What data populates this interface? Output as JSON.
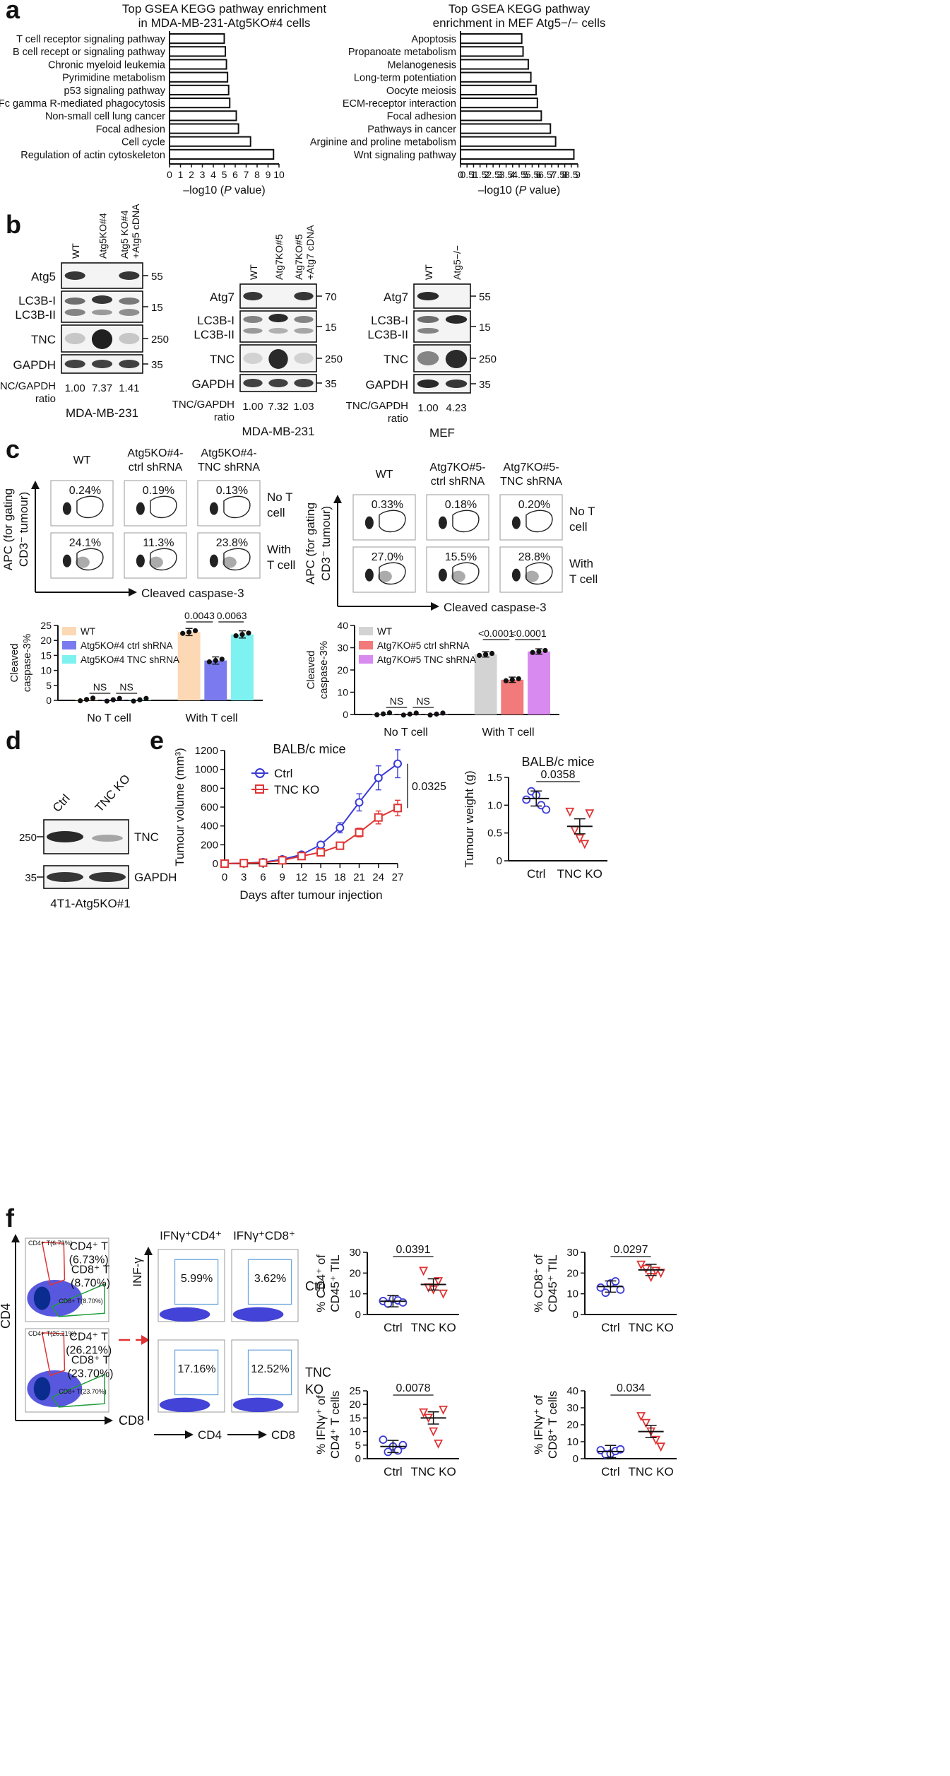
{
  "panels": {
    "a": "a",
    "b": "b",
    "c": "c",
    "d": "d",
    "e": "e",
    "f": "f"
  },
  "panel_a": {
    "left": {
      "title_1": "Top GSEA KEGG pathway enrichment",
      "title_2": "in MDA-MB-231-Atg5KO#4 cells",
      "xlabel": "–log10 (P value)",
      "ticks": [
        "0",
        "1",
        "2",
        "3",
        "4",
        "5",
        "6",
        "7",
        "8",
        "9",
        "10"
      ],
      "categories": [
        "T cell receptor signaling pathway",
        "B cell recept or signaling pathway",
        "Chronic myeloid leukemia",
        "Pyrimidine metabolism",
        "p53 signaling pathway",
        "Fc gamma R-mediated phagocytosis",
        "Non-small cell lung cancer",
        "Focal adhesion",
        "Cell cycle",
        "Regulation of actin cytoskeleton"
      ],
      "values": [
        5.0,
        5.1,
        5.2,
        5.3,
        5.4,
        5.5,
        6.1,
        6.3,
        7.4,
        9.5
      ]
    },
    "right": {
      "title_1": "Top GSEA KEGG pathway",
      "title_2": "enrichment in MEF Atg5−/− cells",
      "xlabel": "–log10 (P value)",
      "ticks": [
        "0",
        "0.5",
        "1",
        "1.5",
        "2",
        "2.5",
        "3",
        "3.5",
        "4",
        "4.5",
        "5",
        "5.5",
        "6",
        "6.5",
        "7",
        "7.5",
        "8",
        "8.5",
        "9"
      ],
      "categories": [
        "Apoptosis",
        "Propanoate metabolism",
        "Melanogenesis",
        "Long-term potentiation",
        "Oocyte meiosis",
        "ECM-receptor interaction",
        "Focal adhesion",
        "Pathways in cancer",
        "Arginine and proline metabolism",
        "Wnt signaling pathway"
      ],
      "values": [
        4.7,
        4.8,
        5.2,
        5.4,
        5.8,
        5.9,
        6.2,
        6.9,
        7.3,
        8.7
      ]
    }
  },
  "panel_b": {
    "blot1": {
      "lanes": [
        "WT",
        "Atg5KO#4",
        "Atg5 KO#4\n+Atg5 cDNA"
      ],
      "rows": [
        "Atg5",
        "LC3B-I\nLC3B-II",
        "TNC",
        "GAPDH"
      ],
      "kda": [
        "55",
        "15",
        "250",
        "35"
      ],
      "ratio_label": "TNC/GAPDH\nratio",
      "ratios": [
        "1.00",
        "7.37",
        "1.41"
      ],
      "cell": "MDA-MB-231"
    },
    "blot2": {
      "lanes": [
        "WT",
        "Atg7KO#5",
        "Atg7KO#5\n+Atg7 cDNA"
      ],
      "rows": [
        "Atg7",
        "LC3B-I\nLC3B-II",
        "TNC",
        "GAPDH"
      ],
      "kda": [
        "70",
        "15",
        "250",
        "35"
      ],
      "ratio_label": "TNC/GAPDH\nratio",
      "ratios": [
        "1.00",
        "7.32",
        "1.03"
      ],
      "cell": "MDA-MB-231"
    },
    "blot3": {
      "lanes": [
        "WT",
        "Atg5−/−"
      ],
      "rows": [
        "Atg7",
        "LC3B-I\nLC3B-II",
        "TNC",
        "GAPDH"
      ],
      "kda": [
        "55",
        "15",
        "250",
        "35"
      ],
      "ratio_label": "TNC/GAPDH\nratio",
      "ratios": [
        "1.00",
        "4.23"
      ],
      "cell": "MEF"
    }
  },
  "panel_c": {
    "left": {
      "cols": [
        "WT",
        "Atg5KO#4-\nctrl shRNA",
        "Atg5KO#4-\nTNC shRNA"
      ],
      "row_labels": [
        "No T\ncell",
        "With\nT cell"
      ],
      "pct_no": [
        "0.24%",
        "0.19%",
        "0.13%"
      ],
      "pct_with": [
        "24.1%",
        "11.3%",
        "23.8%"
      ],
      "y_axis_label": "APC (for gating\nCD3⁻ tumour)",
      "x_axis_label": "Cleaved caspase-3"
    },
    "right": {
      "cols": [
        "WT",
        "Atg7KO#5-\nctrl shRNA",
        "Atg7KO#5-\nTNC shRNA"
      ],
      "row_labels": [
        "No  T\ncell",
        "With\nT cell"
      ],
      "pct_no": [
        "0.33%",
        "0.18%",
        "0.20%"
      ],
      "pct_with": [
        "27.0%",
        "15.5%",
        "28.8%"
      ],
      "y_axis_label": "APC (for gating\nCD3⁻ tumour)",
      "x_axis_label": "Cleaved caspase-3"
    }
  },
  "chart_data": [
    {
      "type": "bar",
      "id": "c_left",
      "ylabel": "Cleaved\ncaspase-3%",
      "ylim": [
        0,
        25
      ],
      "yticks": [
        "0",
        "5",
        "10",
        "15",
        "20",
        "25"
      ],
      "categories": [
        "No T cell",
        "With T cell"
      ],
      "series": [
        {
          "name": "WT",
          "color": "#fcd9b4",
          "values": [
            0.3,
            22.8
          ]
        },
        {
          "name": "Atg5KO#4 ctrl shRNA",
          "color": "#7b7bef",
          "values": [
            0.2,
            13.3
          ]
        },
        {
          "name": "Atg5KO#4 TNC shRNA",
          "color": "#7ef1f1",
          "values": [
            0.2,
            22.0
          ]
        }
      ],
      "annotations": [
        "NS",
        "NS",
        "0.0043",
        "0.0063"
      ]
    },
    {
      "type": "bar",
      "id": "c_right",
      "ylabel": "Cleaved\ncaspase-3%",
      "ylim": [
        0,
        40
      ],
      "yticks": [
        "0",
        "10",
        "20",
        "30",
        "40"
      ],
      "categories": [
        "No T cell",
        "With T cell"
      ],
      "series": [
        {
          "name": "WT",
          "color": "#d3d3d3",
          "values": [
            0.3,
            27.0
          ]
        },
        {
          "name": "Atg7KO#5 ctrl shRNA",
          "color": "#f27a7a",
          "values": [
            0.2,
            15.6
          ]
        },
        {
          "name": "Atg7KO#5 TNC shRNA",
          "color": "#d98af0",
          "values": [
            0.2,
            28.3
          ]
        }
      ],
      "annotations": [
        "NS",
        "NS",
        "<0.0001",
        "<0.0001"
      ]
    },
    {
      "type": "line",
      "id": "e_volume",
      "title": "BALB/c mice",
      "xlabel": "Days after tumour injection",
      "ylabel": "Tumour volume (mm³)",
      "x": [
        0,
        3,
        6,
        9,
        12,
        15,
        18,
        21,
        24,
        27
      ],
      "ylim": [
        0,
        1200
      ],
      "yticks": [
        "0",
        "200",
        "400",
        "600",
        "800",
        "1000",
        "1200"
      ],
      "xticks": [
        "0",
        "3",
        "6",
        "9",
        "12",
        "15",
        "18",
        "21",
        "24",
        "27"
      ],
      "series": [
        {
          "name": "Ctrl",
          "color": "#3a3ad6",
          "values": [
            0,
            5,
            15,
            45,
            95,
            200,
            380,
            650,
            910,
            1060
          ]
        },
        {
          "name": "TNC KO",
          "color": "#e03434",
          "values": [
            0,
            5,
            10,
            35,
            80,
            120,
            190,
            330,
            490,
            590
          ]
        }
      ],
      "p_value": "0.0325"
    },
    {
      "type": "scatter",
      "id": "e_weight",
      "title": "BALB/c mice",
      "ylabel": "Tumour weight (g)",
      "categories": [
        "Ctrl",
        "TNC KO"
      ],
      "ylim": [
        0,
        1.5
      ],
      "yticks": [
        "0",
        "0.5",
        "1.0",
        "1.5"
      ],
      "series": [
        {
          "name": "Ctrl",
          "values": [
            1.1,
            1.25,
            1.18,
            1.0,
            0.92
          ],
          "mean": 1.12
        },
        {
          "name": "TNC KO",
          "values": [
            0.88,
            0.55,
            0.4,
            0.3,
            0.85
          ],
          "mean": 0.62
        }
      ],
      "p_value": "0.0358"
    },
    {
      "type": "scatter",
      "id": "f1",
      "ylabel": "% CD4⁺ of\nCD45⁺ TIL",
      "categories": [
        "Ctrl",
        "TNC KO"
      ],
      "ylim": [
        0,
        30
      ],
      "yticks": [
        "0",
        "10",
        "20",
        "30"
      ],
      "series": [
        {
          "name": "Ctrl",
          "values": [
            6.5,
            5.2,
            7.5,
            6.8,
            5.8
          ],
          "mean": 6.4
        },
        {
          "name": "TNC KO",
          "values": [
            21,
            13,
            12,
            16,
            10
          ],
          "mean": 14.5
        }
      ],
      "p_value": "0.0391"
    },
    {
      "type": "scatter",
      "id": "f2",
      "ylabel": "% CD8⁺ of\nCD45⁺ TIL",
      "categories": [
        "Ctrl",
        "TNC KO"
      ],
      "ylim": [
        0,
        30
      ],
      "yticks": [
        "0",
        "10",
        "20",
        "30"
      ],
      "series": [
        {
          "name": "Ctrl",
          "values": [
            13,
            10.5,
            15,
            16,
            12
          ],
          "mean": 13.5
        },
        {
          "name": "TNC KO",
          "values": [
            24,
            22,
            18,
            21,
            20
          ],
          "mean": 21.5
        }
      ],
      "p_value": "0.0297"
    },
    {
      "type": "scatter",
      "id": "f3",
      "ylabel": "% IFNγ⁺ of\nCD4⁺ T cells",
      "categories": [
        "Ctrl",
        "TNC KO"
      ],
      "ylim": [
        0,
        25
      ],
      "yticks": [
        "0",
        "5",
        "10",
        "15",
        "20",
        "25"
      ],
      "series": [
        {
          "name": "Ctrl",
          "values": [
            7,
            2.5,
            4.5,
            3,
            5
          ],
          "mean": 4.5
        },
        {
          "name": "TNC KO",
          "values": [
            17,
            15,
            10,
            5.5,
            18
          ],
          "mean": 15.0
        }
      ],
      "p_value": "0.0078"
    },
    {
      "type": "scatter",
      "id": "f4",
      "ylabel": "% IFNγ⁺ of\nCD8⁺ T cells",
      "categories": [
        "Ctrl",
        "TNC KO"
      ],
      "ylim": [
        0,
        40
      ],
      "yticks": [
        "0",
        "10",
        "20",
        "30",
        "40"
      ],
      "series": [
        {
          "name": "Ctrl",
          "values": [
            5,
            2.5,
            3,
            4.5,
            5.5
          ],
          "mean": 4.2
        },
        {
          "name": "TNC KO",
          "values": [
            25,
            21,
            16,
            11,
            7
          ],
          "mean": 16.0
        }
      ],
      "p_value": "0.034"
    }
  ],
  "panel_d": {
    "lanes": [
      "Ctrl",
      "TNC KO"
    ],
    "rows": [
      "TNC",
      "GAPDH"
    ],
    "kda": [
      "250",
      "35"
    ],
    "cell": "4T1-Atg5KO#1"
  },
  "panel_f": {
    "y_axis": "CD4",
    "x_axis": "CD8",
    "gate_ctrl_cd4": "CD4⁺ T\n(6.73%)",
    "gate_ctrl_cd8": "CD8⁺ T\n(8.70%)",
    "gate_ko_cd4": "CD4⁺ T\n(26.21%)",
    "gate_ko_cd8": "CD8⁺ T\n(23.70%)",
    "tiny_ctrl_cd4": "CD4+ T(6.73%)",
    "tiny_ctrl_cd8": "CD8+ T(8.70%)",
    "tiny_ko_cd4": "CD4+ T(26.21%)",
    "tiny_ko_cd8": "CD8+ T(23.70%)",
    "col1": "IFNγ⁺CD4⁺",
    "col2": "IFNγ⁺CD8⁺",
    "infg_axis": "INF-γ",
    "x1": "CD4",
    "x2": "CD8",
    "pct": [
      "5.99%",
      "3.62%",
      "17.16%",
      "12.52%"
    ],
    "rows": [
      "Ctrl",
      "TNC\nKO"
    ]
  }
}
